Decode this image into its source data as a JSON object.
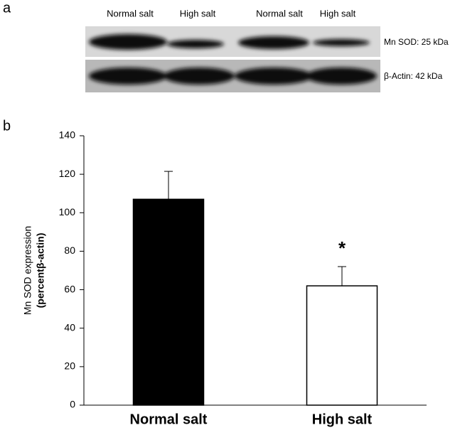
{
  "panel_a": {
    "label": "a",
    "lanes": [
      "Normal salt",
      "High salt",
      "Normal salt",
      "High salt"
    ],
    "bands": [
      "Mn SOD: 25 kDa",
      "β-Actin: 42 kDa"
    ]
  },
  "chart_data": {
    "type": "bar",
    "label": "b",
    "ylabel": [
      "Mn SOD expression",
      "(percentβ-actin)"
    ],
    "categories": [
      "Normal salt",
      "High salt"
    ],
    "values": [
      107,
      62
    ],
    "errors": [
      14.5,
      10
    ],
    "colors": [
      "#000000",
      "#ffffff"
    ],
    "annotations": [
      {
        "category": 1,
        "text": "*"
      }
    ],
    "ylim": [
      0,
      140
    ],
    "yticks": [
      0,
      20,
      40,
      60,
      80,
      100,
      120,
      140
    ]
  }
}
